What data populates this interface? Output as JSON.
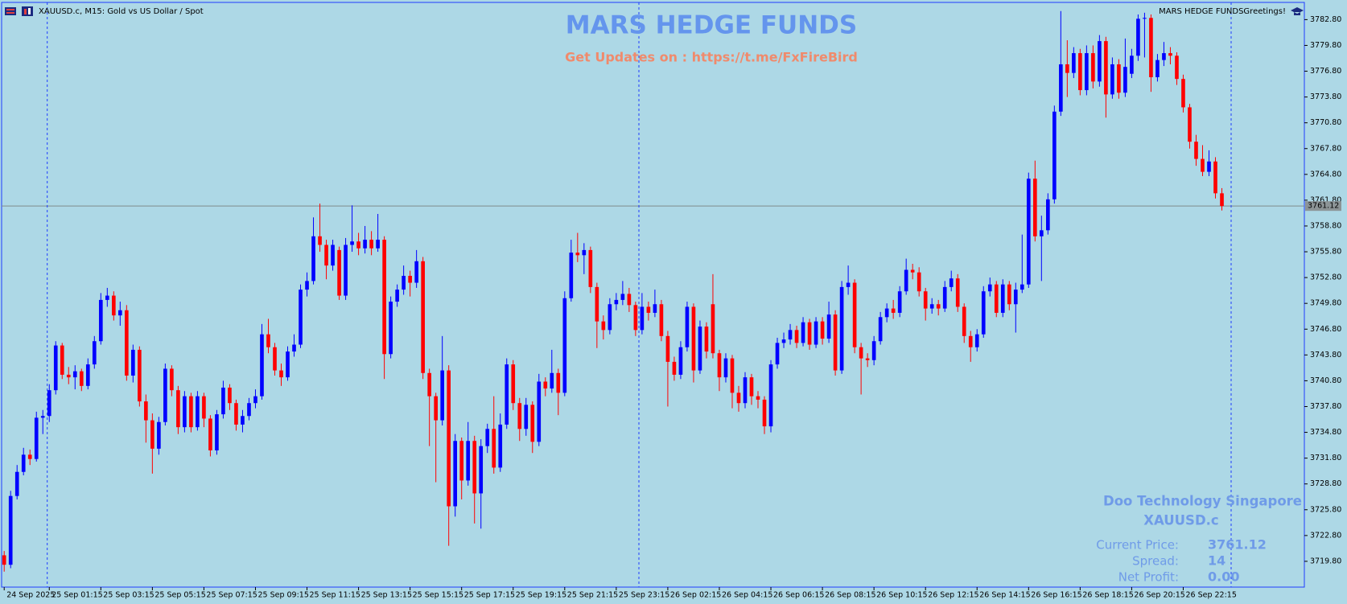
{
  "header": {
    "symbol_info": "XAUUSD.c, M15:  Gold vs US Dollar / Spot",
    "greeting": "MARS HEDGE FUNDSGreetings!"
  },
  "chart_data": {
    "type": "candlestick",
    "title": "MARS HEDGE FUNDS",
    "subtitle": "Get Updates on : https://t.me/FxFireBird",
    "bull_color": "#0000ff",
    "bear_color": "#ff0000",
    "last_price": 3761.12,
    "ylim": [
      3716.8,
      3784.8
    ],
    "yticks": [
      {
        "value": 3719.8,
        "label": "3719.80"
      },
      {
        "value": 3722.8,
        "label": "3722.80"
      },
      {
        "value": 3725.8,
        "label": "3725.80"
      },
      {
        "value": 3728.8,
        "label": "3728.80"
      },
      {
        "value": 3731.8,
        "label": "3731.80"
      },
      {
        "value": 3734.8,
        "label": "3734.80"
      },
      {
        "value": 3737.8,
        "label": "3737.80"
      },
      {
        "value": 3740.8,
        "label": "3740.80"
      },
      {
        "value": 3743.8,
        "label": "3743.80"
      },
      {
        "value": 3746.8,
        "label": "3746.80"
      },
      {
        "value": 3749.8,
        "label": "3749.80"
      },
      {
        "value": 3752.8,
        "label": "3752.80"
      },
      {
        "value": 3755.8,
        "label": "3755.80"
      },
      {
        "value": 3758.8,
        "label": "3758.80"
      },
      {
        "value": 3761.8,
        "label": "3761.80"
      },
      {
        "value": 3764.8,
        "label": "3764.80"
      },
      {
        "value": 3767.8,
        "label": "3767.80"
      },
      {
        "value": 3770.8,
        "label": "3770.80"
      },
      {
        "value": 3773.8,
        "label": "3773.80"
      },
      {
        "value": 3776.8,
        "label": "3776.80"
      },
      {
        "value": 3779.8,
        "label": "3779.80"
      },
      {
        "value": 3782.8,
        "label": "3782.80"
      }
    ],
    "xlim": [
      -0.4,
      201.8
    ],
    "xticks": [
      {
        "value": 0,
        "label": "24 Sep 2025"
      },
      {
        "value": 7,
        "label": "25 Sep 01:15"
      },
      {
        "value": 15,
        "label": "25 Sep 03:15"
      },
      {
        "value": 23,
        "label": "25 Sep 05:15"
      },
      {
        "value": 31,
        "label": "25 Sep 07:15"
      },
      {
        "value": 39,
        "label": "25 Sep 09:15"
      },
      {
        "value": 47,
        "label": "25 Sep 11:15"
      },
      {
        "value": 55,
        "label": "25 Sep 13:15"
      },
      {
        "value": 63,
        "label": "25 Sep 15:15"
      },
      {
        "value": 71,
        "label": "25 Sep 17:15"
      },
      {
        "value": 79,
        "label": "25 Sep 19:15"
      },
      {
        "value": 87,
        "label": "25 Sep 21:15"
      },
      {
        "value": 95,
        "label": "25 Sep 23:15"
      },
      {
        "value": 103,
        "label": "26 Sep 02:15"
      },
      {
        "value": 111,
        "label": "26 Sep 04:15"
      },
      {
        "value": 119,
        "label": "26 Sep 06:15"
      },
      {
        "value": 127,
        "label": "26 Sep 08:15"
      },
      {
        "value": 135,
        "label": "26 Sep 10:15"
      },
      {
        "value": 143,
        "label": "26 Sep 12:15"
      },
      {
        "value": 151,
        "label": "26 Sep 14:15"
      },
      {
        "value": 159,
        "label": "26 Sep 16:15"
      },
      {
        "value": 167,
        "label": "26 Sep 18:15"
      },
      {
        "value": 175,
        "label": "26 Sep 20:15"
      },
      {
        "value": 183,
        "label": "26 Sep 22:15"
      }
    ],
    "candles": [
      [
        3720.5,
        3721.0,
        3718.6,
        3719.4
      ],
      [
        3719.4,
        3728.0,
        3719.0,
        3727.4
      ],
      [
        3727.4,
        3731.0,
        3727.0,
        3730.2
      ],
      [
        3730.2,
        3733.0,
        3729.8,
        3732.2
      ],
      [
        3732.2,
        3732.8,
        3731.0,
        3731.7
      ],
      [
        3731.7,
        3737.2,
        3731.4,
        3736.5
      ],
      [
        3736.5,
        3737.4,
        3734.6,
        3736.7
      ],
      [
        3736.7,
        3740.4,
        3736.0,
        3739.7
      ],
      [
        3739.7,
        3745.4,
        3739.2,
        3744.9
      ],
      [
        3744.9,
        3745.2,
        3741.0,
        3741.5
      ],
      [
        3741.5,
        3742.4,
        3740.4,
        3741.2
      ],
      [
        3741.2,
        3742.6,
        3739.8,
        3741.9
      ],
      [
        3741.9,
        3742.2,
        3739.6,
        3740.2
      ],
      [
        3740.2,
        3743.4,
        3739.8,
        3742.7
      ],
      [
        3742.7,
        3746.0,
        3742.2,
        3745.4
      ],
      [
        3745.4,
        3751.0,
        3745.0,
        3750.2
      ],
      [
        3750.2,
        3751.6,
        3749.4,
        3750.7
      ],
      [
        3750.7,
        3751.2,
        3747.8,
        3748.4
      ],
      [
        3748.4,
        3750.0,
        3747.2,
        3749.0
      ],
      [
        3749.0,
        3749.6,
        3740.8,
        3741.4
      ],
      [
        3741.4,
        3745.0,
        3740.6,
        3744.4
      ],
      [
        3744.4,
        3744.8,
        3737.8,
        3738.4
      ],
      [
        3738.4,
        3739.2,
        3733.6,
        3736.2
      ],
      [
        3736.2,
        3737.0,
        3730.0,
        3732.9
      ],
      [
        3732.9,
        3736.6,
        3732.2,
        3736.0
      ],
      [
        3736.0,
        3742.8,
        3735.6,
        3742.2
      ],
      [
        3742.2,
        3742.6,
        3739.0,
        3739.7
      ],
      [
        3739.7,
        3740.2,
        3734.6,
        3735.4
      ],
      [
        3735.4,
        3739.6,
        3734.8,
        3739.0
      ],
      [
        3739.0,
        3739.4,
        3734.8,
        3735.4
      ],
      [
        3735.4,
        3739.6,
        3735.0,
        3739.0
      ],
      [
        3739.0,
        3739.4,
        3735.4,
        3736.4
      ],
      [
        3736.4,
        3736.8,
        3732.0,
        3732.7
      ],
      [
        3732.7,
        3737.4,
        3732.2,
        3736.9
      ],
      [
        3736.9,
        3740.8,
        3736.4,
        3740.0
      ],
      [
        3740.0,
        3740.4,
        3737.4,
        3738.2
      ],
      [
        3738.2,
        3738.6,
        3735.0,
        3735.7
      ],
      [
        3735.7,
        3737.4,
        3734.8,
        3736.7
      ],
      [
        3736.7,
        3738.8,
        3736.2,
        3738.2
      ],
      [
        3738.2,
        3739.8,
        3737.6,
        3739.0
      ],
      [
        3739.0,
        3747.4,
        3738.6,
        3746.2
      ],
      [
        3746.2,
        3748.0,
        3744.0,
        3744.7
      ],
      [
        3744.7,
        3745.2,
        3741.4,
        3742.0
      ],
      [
        3742.0,
        3742.8,
        3740.2,
        3741.2
      ],
      [
        3741.2,
        3744.8,
        3740.8,
        3744.2
      ],
      [
        3744.2,
        3746.2,
        3743.6,
        3745.0
      ],
      [
        3745.0,
        3752.0,
        3744.6,
        3751.4
      ],
      [
        3751.4,
        3753.4,
        3750.6,
        3752.4
      ],
      [
        3752.4,
        3759.8,
        3752.0,
        3757.6
      ],
      [
        3757.6,
        3761.4,
        3755.8,
        3756.6
      ],
      [
        3756.6,
        3757.2,
        3752.6,
        3754.2
      ],
      [
        3754.2,
        3757.2,
        3753.6,
        3756.6
      ],
      [
        3756.0,
        3756.4,
        3750.2,
        3750.7
      ],
      [
        3750.7,
        3757.4,
        3750.2,
        3756.6
      ],
      [
        3756.6,
        3761.2,
        3755.8,
        3757.0
      ],
      [
        3757.0,
        3758.0,
        3755.4,
        3756.2
      ],
      [
        3756.2,
        3758.8,
        3755.6,
        3757.2
      ],
      [
        3757.2,
        3758.2,
        3755.4,
        3756.2
      ],
      [
        3756.2,
        3760.2,
        3755.8,
        3757.2
      ],
      [
        3757.2,
        3757.6,
        3741.0,
        3743.9
      ],
      [
        3743.9,
        3750.6,
        3743.4,
        3750.0
      ],
      [
        3750.0,
        3752.0,
        3749.4,
        3751.4
      ],
      [
        3751.4,
        3754.2,
        3750.8,
        3753.0
      ],
      [
        3753.0,
        3753.6,
        3750.6,
        3752.2
      ],
      [
        3752.2,
        3756.0,
        3751.6,
        3754.7
      ],
      [
        3754.7,
        3755.2,
        3741.0,
        3741.7
      ],
      [
        3741.7,
        3742.2,
        3733.2,
        3739.0
      ],
      [
        3739.0,
        3739.4,
        3729.0,
        3736.2
      ],
      [
        3736.2,
        3746.0,
        3735.6,
        3742.0
      ],
      [
        3742.0,
        3742.6,
        3721.6,
        3726.2
      ],
      [
        3726.2,
        3734.6,
        3725.0,
        3733.8
      ],
      [
        3733.8,
        3734.2,
        3727.0,
        3729.2
      ],
      [
        3729.2,
        3736.0,
        3728.6,
        3733.8
      ],
      [
        3733.8,
        3734.4,
        3724.2,
        3727.7
      ],
      [
        3727.7,
        3734.0,
        3723.6,
        3733.2
      ],
      [
        3733.2,
        3735.8,
        3732.4,
        3735.2
      ],
      [
        3735.2,
        3739.0,
        3730.0,
        3730.7
      ],
      [
        3730.7,
        3737.0,
        3730.2,
        3735.7
      ],
      [
        3735.7,
        3743.4,
        3735.2,
        3742.7
      ],
      [
        3742.7,
        3743.2,
        3737.4,
        3738.2
      ],
      [
        3738.2,
        3738.8,
        3733.8,
        3735.2
      ],
      [
        3735.2,
        3738.8,
        3734.4,
        3738.0
      ],
      [
        3738.0,
        3738.4,
        3732.4,
        3733.7
      ],
      [
        3733.7,
        3741.6,
        3733.2,
        3740.7
      ],
      [
        3740.7,
        3741.2,
        3739.0,
        3739.9
      ],
      [
        3739.9,
        3744.4,
        3739.4,
        3741.7
      ],
      [
        3741.7,
        3742.2,
        3736.8,
        3739.4
      ],
      [
        3739.4,
        3751.2,
        3739.0,
        3750.4
      ],
      [
        3750.4,
        3757.2,
        3750.0,
        3755.7
      ],
      [
        3755.7,
        3758.0,
        3754.6,
        3755.4
      ],
      [
        3755.4,
        3756.8,
        3753.2,
        3756.0
      ],
      [
        3756.0,
        3756.4,
        3751.0,
        3751.7
      ],
      [
        3751.7,
        3752.2,
        3744.6,
        3747.7
      ],
      [
        3747.7,
        3748.4,
        3745.6,
        3746.7
      ],
      [
        3746.7,
        3750.4,
        3746.2,
        3749.7
      ],
      [
        3749.7,
        3751.0,
        3749.0,
        3750.2
      ],
      [
        3750.2,
        3752.4,
        3749.6,
        3750.9
      ],
      [
        3750.9,
        3751.6,
        3748.8,
        3749.6
      ],
      [
        3749.6,
        3750.0,
        3746.0,
        3746.7
      ],
      [
        3746.7,
        3751.0,
        3746.2,
        3749.4
      ],
      [
        3749.4,
        3750.0,
        3747.8,
        3748.7
      ],
      [
        3748.7,
        3751.4,
        3748.2,
        3749.7
      ],
      [
        3749.7,
        3750.2,
        3745.4,
        3746.0
      ],
      [
        3746.0,
        3746.6,
        3737.8,
        3743.0
      ],
      [
        3743.0,
        3743.6,
        3740.8,
        3741.5
      ],
      [
        3741.5,
        3745.4,
        3741.0,
        3744.7
      ],
      [
        3744.7,
        3750.0,
        3744.2,
        3749.4
      ],
      [
        3749.4,
        3749.8,
        3740.6,
        3742.0
      ],
      [
        3742.0,
        3747.8,
        3741.6,
        3747.1
      ],
      [
        3747.1,
        3747.6,
        3743.4,
        3744.2
      ],
      [
        3749.7,
        3753.2,
        3743.4,
        3744.0
      ],
      [
        3744.0,
        3744.4,
        3739.6,
        3741.2
      ],
      [
        3741.2,
        3744.0,
        3740.6,
        3743.4
      ],
      [
        3743.4,
        3743.8,
        3737.6,
        3739.4
      ],
      [
        3739.4,
        3740.2,
        3737.2,
        3738.2
      ],
      [
        3738.2,
        3741.8,
        3737.6,
        3741.2
      ],
      [
        3741.2,
        3741.6,
        3738.0,
        3739.0
      ],
      [
        3739.0,
        3739.6,
        3737.6,
        3738.6
      ],
      [
        3738.6,
        3739.0,
        3734.6,
        3735.5
      ],
      [
        3735.5,
        3743.2,
        3734.8,
        3742.7
      ],
      [
        3742.7,
        3745.8,
        3742.2,
        3745.2
      ],
      [
        3745.2,
        3746.4,
        3744.6,
        3745.6
      ],
      [
        3745.6,
        3747.4,
        3745.0,
        3746.7
      ],
      [
        3746.7,
        3747.2,
        3744.6,
        3745.2
      ],
      [
        3745.2,
        3748.2,
        3744.8,
        3747.6
      ],
      [
        3747.6,
        3748.0,
        3744.4,
        3745.0
      ],
      [
        3745.0,
        3748.2,
        3744.6,
        3747.7
      ],
      [
        3747.7,
        3748.2,
        3745.0,
        3745.7
      ],
      [
        3745.7,
        3750.0,
        3745.2,
        3748.5
      ],
      [
        3748.5,
        3749.0,
        3741.4,
        3742.0
      ],
      [
        3742.0,
        3752.4,
        3741.6,
        3751.7
      ],
      [
        3751.7,
        3754.2,
        3750.8,
        3752.2
      ],
      [
        3752.2,
        3752.6,
        3744.0,
        3744.7
      ],
      [
        3744.7,
        3745.2,
        3739.2,
        3743.4
      ],
      [
        3743.4,
        3744.0,
        3742.4,
        3743.2
      ],
      [
        3743.2,
        3746.0,
        3742.6,
        3745.4
      ],
      [
        3745.4,
        3748.8,
        3745.0,
        3748.2
      ],
      [
        3748.2,
        3749.8,
        3747.6,
        3749.2
      ],
      [
        3749.2,
        3750.2,
        3748.0,
        3748.7
      ],
      [
        3748.7,
        3751.8,
        3748.2,
        3751.2
      ],
      [
        3751.2,
        3755.0,
        3750.8,
        3753.7
      ],
      [
        3753.7,
        3754.4,
        3752.6,
        3753.4
      ],
      [
        3753.4,
        3754.0,
        3750.6,
        3751.2
      ],
      [
        3751.2,
        3751.6,
        3747.8,
        3749.2
      ],
      [
        3749.2,
        3750.4,
        3748.6,
        3749.7
      ],
      [
        3749.7,
        3750.2,
        3748.4,
        3749.2
      ],
      [
        3749.2,
        3752.4,
        3748.8,
        3751.7
      ],
      [
        3751.7,
        3753.6,
        3751.2,
        3752.7
      ],
      [
        3752.7,
        3753.2,
        3748.8,
        3749.4
      ],
      [
        3749.4,
        3749.8,
        3745.2,
        3746.0
      ],
      [
        3746.0,
        3746.6,
        3743.0,
        3744.7
      ],
      [
        3744.7,
        3746.8,
        3744.2,
        3746.2
      ],
      [
        3746.2,
        3751.8,
        3745.8,
        3751.2
      ],
      [
        3751.2,
        3752.8,
        3750.6,
        3752.0
      ],
      [
        3752.0,
        3752.4,
        3748.2,
        3748.7
      ],
      [
        3748.7,
        3752.6,
        3748.2,
        3752.0
      ],
      [
        3752.0,
        3752.4,
        3749.0,
        3749.7
      ],
      [
        3749.7,
        3752.2,
        3746.4,
        3751.4
      ],
      [
        3751.4,
        3757.8,
        3751.0,
        3752.0
      ],
      [
        3752.0,
        3765.0,
        3751.6,
        3764.3
      ],
      [
        3764.3,
        3766.4,
        3757.0,
        3757.6
      ],
      [
        3757.6,
        3760.0,
        3752.4,
        3758.3
      ],
      [
        3758.3,
        3762.6,
        3757.8,
        3761.9
      ],
      [
        3761.9,
        3772.8,
        3761.4,
        3772.1
      ],
      [
        3772.1,
        3783.8,
        3771.6,
        3777.6
      ],
      [
        3777.6,
        3780.4,
        3773.8,
        3776.6
      ],
      [
        3776.6,
        3779.6,
        3776.0,
        3778.9
      ],
      [
        3778.9,
        3779.4,
        3774.0,
        3774.6
      ],
      [
        3774.6,
        3779.8,
        3774.0,
        3778.9
      ],
      [
        3778.9,
        3779.8,
        3774.8,
        3775.6
      ],
      [
        3775.6,
        3781.0,
        3775.0,
        3780.3
      ],
      [
        3780.3,
        3780.8,
        3771.4,
        3774.1
      ],
      [
        3774.1,
        3778.4,
        3773.6,
        3777.6
      ],
      [
        3777.6,
        3778.2,
        3773.6,
        3774.3
      ],
      [
        3774.3,
        3780.6,
        3773.8,
        3777.3
      ],
      [
        3776.5,
        3779.4,
        3776.0,
        3778.6
      ],
      [
        3778.6,
        3783.4,
        3778.0,
        3782.9
      ],
      [
        3782.9,
        3783.6,
        3778.4,
        3783.0
      ],
      [
        3783.0,
        3783.4,
        3774.4,
        3776.1
      ],
      [
        3776.1,
        3778.8,
        3775.6,
        3778.1
      ],
      [
        3778.1,
        3780.2,
        3777.4,
        3778.9
      ],
      [
        3778.9,
        3779.6,
        3777.6,
        3778.6
      ],
      [
        3778.6,
        3779.0,
        3775.2,
        3775.9
      ],
      [
        3775.9,
        3776.4,
        3772.0,
        3772.6
      ],
      [
        3772.6,
        3773.0,
        3767.8,
        3768.6
      ],
      [
        3768.6,
        3769.4,
        3765.8,
        3766.6
      ],
      [
        3766.6,
        3768.2,
        3764.6,
        3765.1
      ],
      [
        3765.1,
        3767.6,
        3764.6,
        3766.3
      ],
      [
        3766.3,
        3766.8,
        3762.0,
        3762.6
      ],
      [
        3762.6,
        3763.2,
        3760.6,
        3761.12
      ]
    ]
  },
  "info_panel": {
    "broker": "Doo Technology Singapore Pte. L",
    "symbol": "XAUUSD.c",
    "rows": [
      [
        "Current Price:",
        3761.12
      ],
      [
        "Spread:",
        14
      ],
      [
        "Net Profit:",
        "0.00"
      ]
    ]
  }
}
